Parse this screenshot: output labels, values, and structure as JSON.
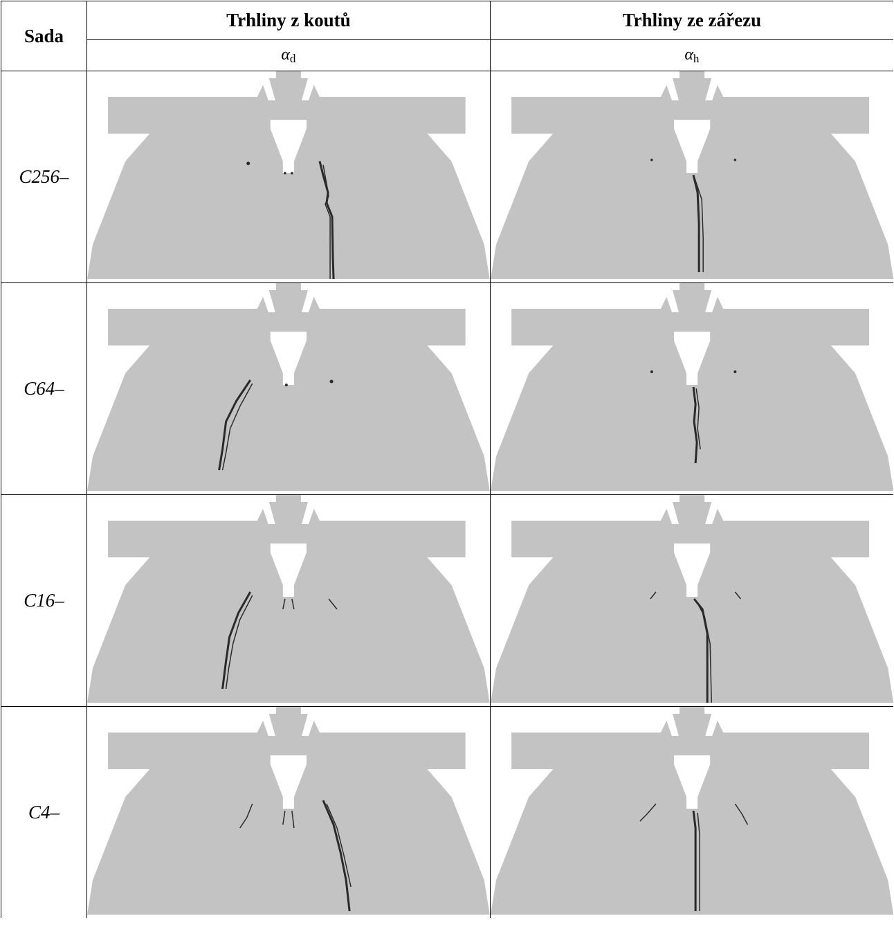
{
  "header": {
    "sada": "Sada",
    "group_corners": "Trhliny z koutů",
    "group_notch": "Trhliny ze zářezu",
    "symbol_corners": {
      "base": "α",
      "sub": "d"
    },
    "symbol_notch": {
      "base": "α",
      "sub": "h"
    }
  },
  "rows": [
    {
      "label": "C256–"
    },
    {
      "label": "C64–"
    },
    {
      "label": "C16–"
    },
    {
      "label": "C4–"
    }
  ],
  "colors": {
    "specimen": "#c3c3c3",
    "crack": "#2a2a2a",
    "border": "#000000"
  }
}
